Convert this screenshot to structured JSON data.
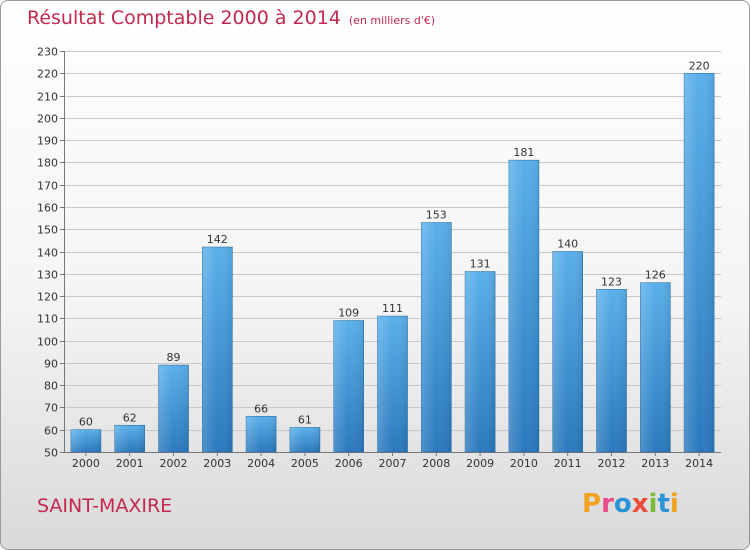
{
  "title": "Résultat Comptable 2000 à 2014",
  "subtitle": "(en milliers d'€)",
  "commune": "SAINT-MAXIRE",
  "logo": {
    "letters": [
      "P",
      "r",
      "o",
      "x",
      "i",
      "t",
      "i"
    ]
  },
  "colors": {
    "title": "#c4284d",
    "bar_top": "#5ab0ea",
    "bar_bottom": "#2a79bd",
    "grid": "#c8c8c8"
  },
  "chart_data": {
    "type": "bar",
    "title": "Résultat Comptable 2000 à 2014",
    "subtitle": "(en milliers d'€)",
    "categories": [
      "2000",
      "2001",
      "2002",
      "2003",
      "2004",
      "2005",
      "2006",
      "2007",
      "2008",
      "2009",
      "2010",
      "2011",
      "2012",
      "2013",
      "2014"
    ],
    "values": [
      60,
      62,
      89,
      142,
      66,
      61,
      109,
      111,
      153,
      131,
      181,
      140,
      123,
      126,
      220
    ],
    "xlabel": "",
    "ylabel": "",
    "ylim": [
      50,
      230
    ],
    "yticks": [
      50,
      60,
      70,
      80,
      90,
      100,
      110,
      120,
      130,
      140,
      150,
      160,
      170,
      180,
      190,
      200,
      210,
      220,
      230
    ],
    "grid": true,
    "data_labels": true
  }
}
